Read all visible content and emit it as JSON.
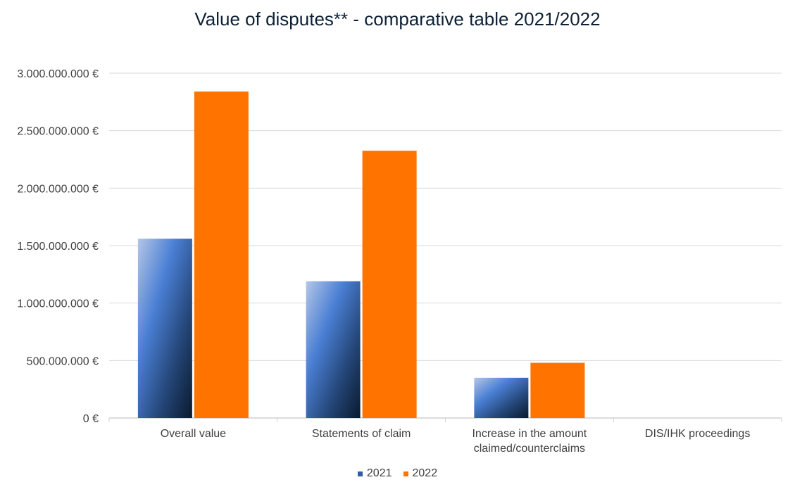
{
  "chart_data": {
    "type": "bar",
    "title": "Value of disputes** - comparative table  2021/2022",
    "categories": [
      [
        "Overall value"
      ],
      [
        "Statements of claim"
      ],
      [
        "Increase in the amount",
        "claimed/counterclaims"
      ],
      [
        "DIS/IHK proceedings"
      ]
    ],
    "series": [
      {
        "name": "2021",
        "values": [
          1560000000,
          1190000000,
          350000000,
          0
        ],
        "color": "#2e5da8"
      },
      {
        "name": "2022",
        "values": [
          2840000000,
          2325000000,
          480000000,
          0
        ],
        "color": "#ff7300"
      }
    ],
    "ylim": [
      0,
      3000000000
    ],
    "ytick_labels": [
      "0 €",
      "500.000.000 €",
      "1.000.000.000 €",
      "1.500.000.000 €",
      "2.000.000.000 €",
      "2.500.000.000 €",
      "3.000.000.000 €"
    ],
    "grid": true,
    "legend_position": "bottom"
  }
}
